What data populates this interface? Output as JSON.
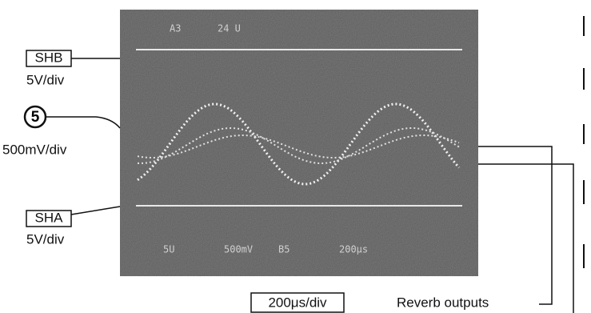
{
  "screen": {
    "top_readout": [
      "A3",
      "24 U"
    ],
    "bottom_readout": [
      "5U",
      "500mV",
      "B5",
      "200μs"
    ]
  },
  "labels": {
    "shb": "SHB",
    "shb_scale": "5V/div",
    "ch5": "5",
    "ch5_scale": "500mV/div",
    "sha": "SHA",
    "sha_scale": "5V/div",
    "timebase": "200μs/div",
    "reverb": "Reverb outputs"
  }
}
